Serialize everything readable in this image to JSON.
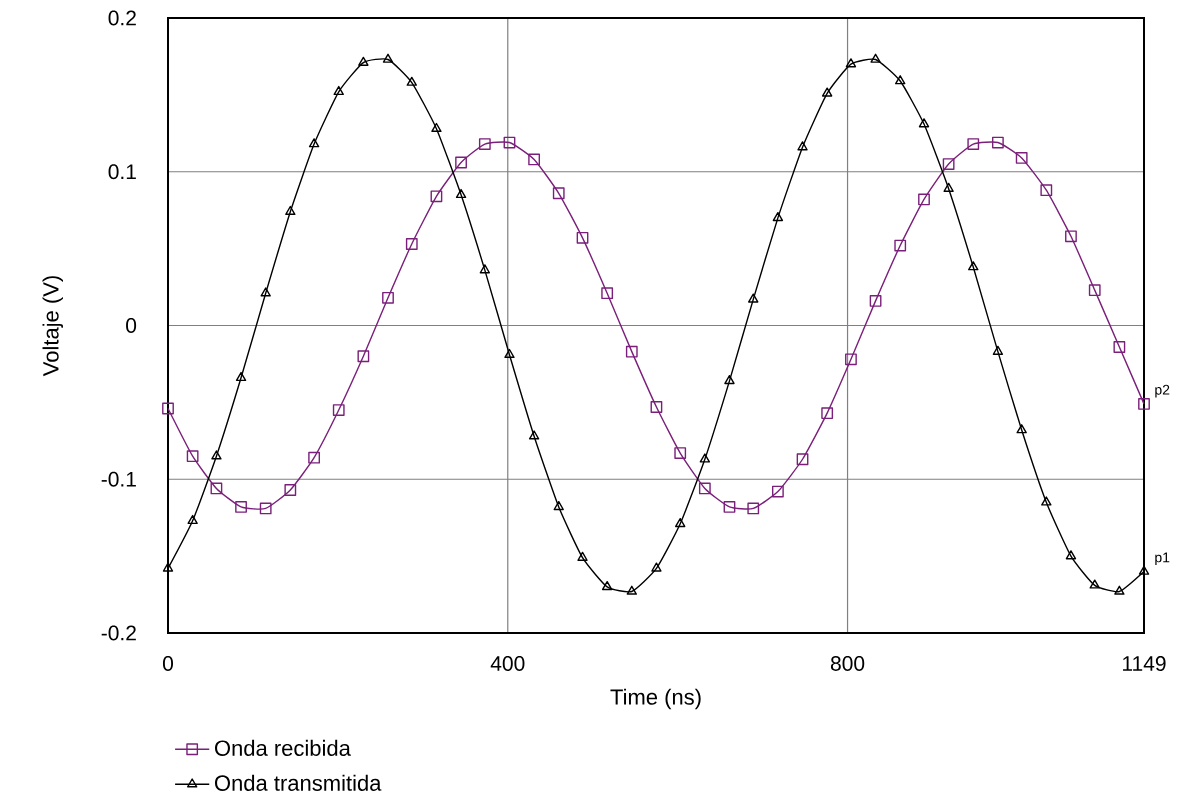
{
  "chart_data": {
    "type": "line",
    "xlabel": "Time (ns)",
    "ylabel": "Voltaje (V)",
    "xlim": [
      0,
      1149
    ],
    "ylim": [
      -0.2,
      0.2
    ],
    "xticks": [
      0,
      400,
      800,
      1149
    ],
    "yticks": [
      -0.2,
      -0.1,
      0,
      0.1,
      0.2
    ],
    "grid": true,
    "legend": "bottom left",
    "series": [
      {
        "name": "Onda recibida",
        "color": "#7a1f7a",
        "marker": "square",
        "x": [
          0,
          29,
          57,
          86,
          115,
          144,
          172,
          201,
          230,
          259,
          287,
          316,
          345,
          373,
          402,
          431,
          460,
          488,
          517,
          546,
          575,
          603,
          632,
          661,
          689,
          718,
          747,
          776,
          804,
          833,
          862,
          890,
          919,
          948,
          977,
          1005,
          1034,
          1063,
          1091,
          1120,
          1149
        ],
        "values": [
          -0.054,
          -0.085,
          -0.106,
          -0.118,
          -0.119,
          -0.107,
          -0.086,
          -0.055,
          -0.02,
          0.018,
          0.053,
          0.084,
          0.106,
          0.118,
          0.119,
          0.108,
          0.086,
          0.057,
          0.021,
          -0.017,
          -0.053,
          -0.083,
          -0.106,
          -0.118,
          -0.119,
          -0.108,
          -0.087,
          -0.057,
          -0.022,
          0.016,
          0.052,
          0.082,
          0.105,
          0.118,
          0.119,
          0.109,
          0.088,
          0.058,
          0.023,
          -0.014,
          -0.051
        ]
      },
      {
        "name": "Onda transmitida",
        "color": "#000000",
        "marker": "triangle",
        "x": [
          0,
          29,
          57,
          86,
          115,
          144,
          172,
          201,
          230,
          259,
          287,
          316,
          345,
          373,
          402,
          431,
          460,
          488,
          517,
          546,
          575,
          603,
          632,
          661,
          689,
          718,
          747,
          776,
          804,
          833,
          862,
          890,
          919,
          948,
          977,
          1005,
          1034,
          1063,
          1091,
          1120,
          1149
        ],
        "values": [
          -0.158,
          -0.127,
          -0.085,
          -0.034,
          0.021,
          0.074,
          0.118,
          0.152,
          0.171,
          0.173,
          0.158,
          0.128,
          0.085,
          0.036,
          -0.019,
          -0.072,
          -0.118,
          -0.151,
          -0.17,
          -0.173,
          -0.158,
          -0.129,
          -0.087,
          -0.036,
          0.017,
          0.07,
          0.116,
          0.151,
          0.17,
          0.173,
          0.159,
          0.131,
          0.089,
          0.038,
          -0.017,
          -0.068,
          -0.115,
          -0.15,
          -0.169,
          -0.173,
          -0.16
        ]
      }
    ],
    "annotations": [
      {
        "text": "p2",
        "x": 1149,
        "y": -0.051
      },
      {
        "text": "p1",
        "x": 1149,
        "y": -0.16
      }
    ]
  }
}
